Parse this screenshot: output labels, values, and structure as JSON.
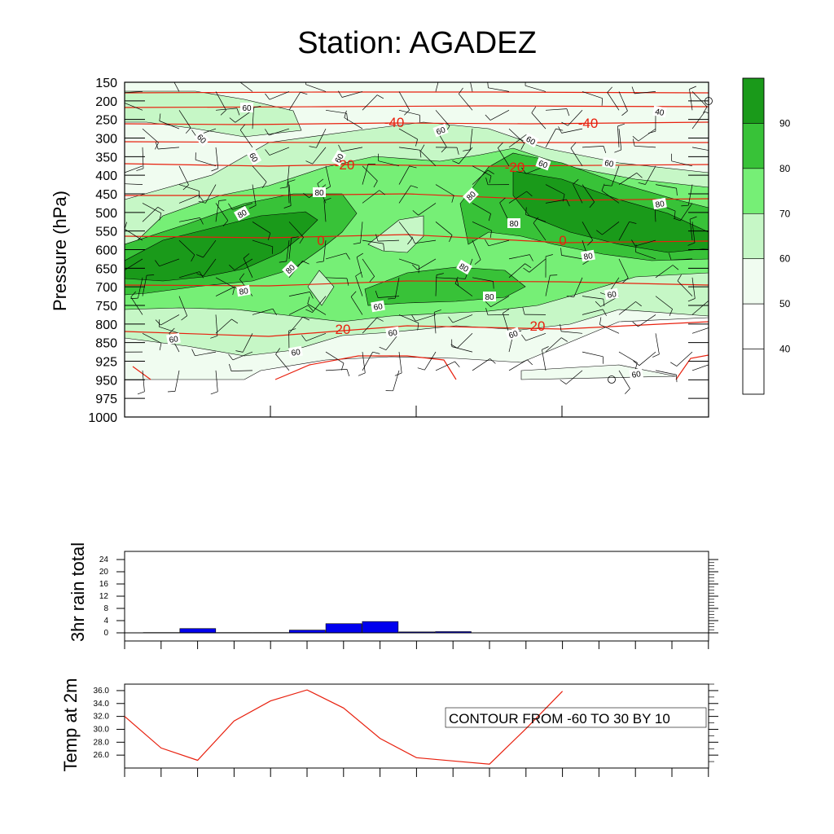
{
  "title": "Station: AGADEZ",
  "colors": {
    "rh": [
      "#ffffff",
      "#f0fcf0",
      "#c6f7c6",
      "#76ef76",
      "#38c238",
      "#1a9a1a"
    ],
    "temp_line": "#e8200e",
    "rain_bar": "#0000ee"
  },
  "chart_data": [
    {
      "type": "heatmap",
      "name": "time-height cross section",
      "ylabel": "Pressure (hPa)",
      "y_ticks": [
        "150",
        "200",
        "250",
        "300",
        "350",
        "400",
        "450",
        "500",
        "550",
        "600",
        "650",
        "700",
        "750",
        "800",
        "850",
        "925",
        "950",
        "975",
        "1000"
      ],
      "colorbar": {
        "levels": [
          40,
          50,
          60,
          70,
          80,
          90
        ],
        "labels": [
          "40",
          "50",
          "60",
          "70",
          "80",
          "90"
        ]
      },
      "rh_contour_labels": [
        "60",
        "60",
        "60",
        "60",
        "60",
        "40",
        "60",
        "60",
        "60",
        "80",
        "80",
        "80",
        "80",
        "80",
        "80",
        "80",
        "80",
        "80",
        "80",
        "60",
        "60",
        "60",
        "60",
        "60",
        "60"
      ],
      "temperature_contours": {
        "levels": [
          -40,
          -20,
          0,
          20
        ],
        "labels": [
          "-40",
          "-40",
          "-20",
          "-20",
          "0",
          "0",
          "20",
          "20"
        ]
      },
      "wind_barbs": "present"
    },
    {
      "type": "bar",
      "name": "rain",
      "ylabel": "3hr rain total",
      "ylim": [
        0,
        24
      ],
      "y_ticks": [
        "0",
        "4",
        "8",
        "12",
        "16",
        "20",
        "24"
      ],
      "values": [
        0.1,
        1.4,
        0.1,
        0.1,
        0.9,
        3.0,
        3.7,
        0.3,
        0.4,
        0,
        0,
        0,
        0,
        0,
        0,
        0
      ]
    },
    {
      "type": "line",
      "name": "t2m",
      "ylabel": "Temp at 2m",
      "ylim": [
        24.0,
        37.0
      ],
      "y_ticks": [
        "26.0",
        "28.0",
        "30.0",
        "32.0",
        "34.0",
        "36.0"
      ],
      "values": [
        32.0,
        27.1,
        25.2,
        31.3,
        34.4,
        36.1,
        33.3,
        28.6,
        25.6,
        25.1,
        24.6,
        30.1,
        35.9
      ],
      "note": "CONTOUR FROM -60 TO 30 BY 10"
    }
  ]
}
